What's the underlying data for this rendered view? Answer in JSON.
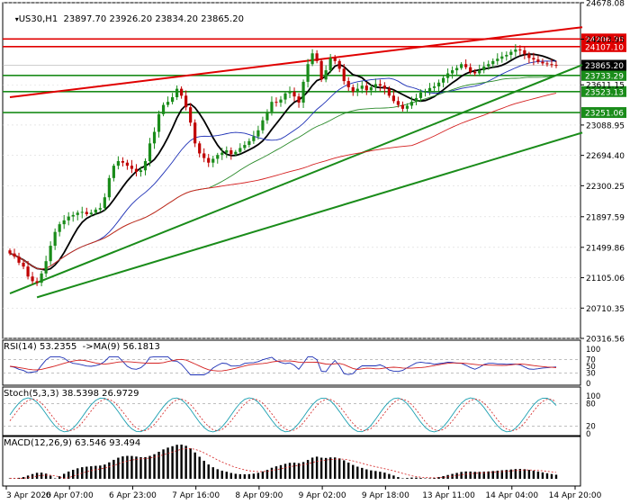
{
  "header": {
    "symbol": "US30,H1",
    "ohlc": "23897.70 23926.20 23834.20 23865.20"
  },
  "indicator_labels": {
    "rsi": "RSI(14) 53.2355  ->MA(9) 56.1813",
    "stoch": "Stoch(5,3,3) 38.5398 26.9729",
    "macd": "MACD(12,26,9) 63.546 93.494"
  },
  "chart_data": {
    "type": "candlestick",
    "instrument": "US30",
    "timeframe": "H1",
    "price_ylim": [
      20316.56,
      24678.08
    ],
    "price_ticks": [
      "24678.08",
      "24203.95",
      "23611.15",
      "23088.95",
      "22694.40",
      "22300.25",
      "21897.59",
      "21499.86",
      "21105.06",
      "20710.35",
      "20316.56"
    ],
    "x_labels": [
      "3 Apr 2020",
      "6 Apr 07:00",
      "6 Apr 23:00",
      "7 Apr 16:00",
      "8 Apr 09:00",
      "9 Apr 02:00",
      "9 Apr 18:00",
      "13 Apr 11:00",
      "14 Apr 04:00",
      "14 Apr 20:00"
    ],
    "current_price": "23865.20",
    "horizontal_levels": [
      {
        "value": "24206.70",
        "color": "#e00000"
      },
      {
        "value": "24107.10",
        "color": "#e00000"
      },
      {
        "value": "23733.29",
        "color": "#1a8c1a"
      },
      {
        "value": "23523.13",
        "color": "#1a8c1a"
      },
      {
        "value": "23251.06",
        "color": "#1a8c1a"
      }
    ],
    "trend_lines": [
      {
        "color": "#e00000",
        "from": {
          "bar": 0,
          "price": 23450
        },
        "to": {
          "bar": 124,
          "price": 24360
        }
      },
      {
        "color": "#1a8c1a",
        "from": {
          "bar": 0,
          "price": 20900
        },
        "to": {
          "bar": 124,
          "price": 23870
        }
      },
      {
        "color": "#1a8c1a",
        "from": {
          "bar": 6,
          "price": 20850
        },
        "to": {
          "bar": 124,
          "price": 22990
        }
      }
    ],
    "closes": [
      21420,
      21380,
      21300,
      21250,
      21120,
      21060,
      21040,
      21160,
      21320,
      21520,
      21700,
      21800,
      21850,
      21900,
      21920,
      21950,
      21960,
      21930,
      21950,
      21990,
      22010,
      22150,
      22400,
      22560,
      22620,
      22600,
      22560,
      22520,
      22480,
      22500,
      22620,
      22850,
      23000,
      23230,
      23350,
      23390,
      23450,
      23560,
      23470,
      23320,
      23120,
      22850,
      22720,
      22660,
      22600,
      22650,
      22700,
      22730,
      22760,
      22710,
      22740,
      22790,
      22830,
      22880,
      22940,
      23020,
      23150,
      23260,
      23390,
      23380,
      23420,
      23500,
      23520,
      23460,
      23380,
      23650,
      23880,
      24020,
      23920,
      23680,
      23800,
      23960,
      23920,
      23820,
      23660,
      23580,
      23520,
      23560,
      23600,
      23540,
      23580,
      23620,
      23600,
      23560,
      23470,
      23400,
      23350,
      23300,
      23340,
      23390,
      23440,
      23510,
      23530,
      23570,
      23590,
      23640,
      23700,
      23760,
      23800,
      23830,
      23880,
      23840,
      23780,
      23760,
      23800,
      23850,
      23880,
      23920,
      23950,
      23980,
      24000,
      24040,
      24070,
      24060,
      24010,
      23960,
      23940,
      23910,
      23890,
      23880,
      23870,
      23865
    ]
  },
  "colors": {
    "bull": "#1a8c1a",
    "bear": "#c00000",
    "ma_fast": "#000000",
    "ma_mid": "#1c2fb5",
    "ma_slow": "#2a8a2a",
    "ma_long": "#d42020",
    "axis": "#000000"
  }
}
